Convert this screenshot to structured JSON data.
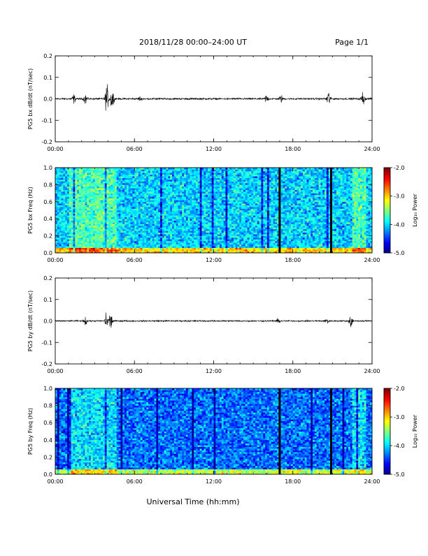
{
  "header": {
    "title": "2018/11/28  00:00–24:00 UT",
    "page": "Page 1/1"
  },
  "footer": {
    "xlabel": "Universal Time (hh:mm)"
  },
  "chart_data": [
    {
      "type": "line",
      "ylabel": "PG5 bx dB/dt (nT/sec)",
      "xlim": [
        "00:00",
        "24:00"
      ],
      "ylim": [
        -0.2,
        0.2
      ],
      "xticks": [
        "00:00",
        "06:00",
        "12:00",
        "18:00",
        "24:00"
      ],
      "yticks": [
        "-0.2",
        "-0.1",
        "0.0",
        "0.1",
        "0.2"
      ],
      "baseline_noise": 0.005,
      "bursts": [
        {
          "t": 1.4,
          "amp": 0.025
        },
        {
          "t": 2.3,
          "amp": 0.03
        },
        {
          "t": 3.9,
          "amp": 0.08
        },
        {
          "t": 4.3,
          "amp": 0.07
        },
        {
          "t": 6.4,
          "amp": 0.012
        },
        {
          "t": 16.0,
          "amp": 0.025
        },
        {
          "t": 17.1,
          "amp": 0.02
        },
        {
          "t": 20.7,
          "amp": 0.05
        },
        {
          "t": 23.3,
          "amp": 0.04
        }
      ],
      "color": "#000000"
    },
    {
      "type": "heatmap",
      "ylabel": "PG5 bx Freq (Hz)",
      "xlim": [
        "00:00",
        "24:00"
      ],
      "ylim": [
        0.0,
        1.0
      ],
      "xticks": [
        "00:00",
        "06:00",
        "12:00",
        "18:00",
        "24:00"
      ],
      "yticks": [
        "0.0",
        "0.2",
        "0.4",
        "0.6",
        "0.8",
        "1.0"
      ],
      "colorbar": {
        "label": "Log₁₀ Power",
        "range": [
          -5.0,
          -2.0
        ],
        "ticks": [
          "-2.0",
          "-3.0",
          "-4.0",
          "-5.0"
        ]
      },
      "data_gaps_hours": [
        17.0,
        20.9
      ],
      "enhanced_intervals_hours": [
        [
          1.0,
          4.6
        ],
        [
          22.5,
          23.6
        ]
      ],
      "cells": {
        "nx": 160,
        "ny": 50,
        "mean_log_power": -4.0
      }
    },
    {
      "type": "line",
      "ylabel": "PG5 by dB/dt (nT/sec)",
      "xlim": [
        "00:00",
        "24:00"
      ],
      "ylim": [
        -0.2,
        0.2
      ],
      "xticks": [
        "00:00",
        "06:00",
        "12:00",
        "18:00",
        "24:00"
      ],
      "yticks": [
        "-0.2",
        "-0.1",
        "0.0",
        "0.1",
        "0.2"
      ],
      "baseline_noise": 0.004,
      "bursts": [
        {
          "t": 2.3,
          "amp": 0.025
        },
        {
          "t": 3.9,
          "amp": 0.06
        },
        {
          "t": 4.2,
          "amp": 0.05
        },
        {
          "t": 16.9,
          "amp": 0.012
        },
        {
          "t": 20.6,
          "amp": 0.02
        },
        {
          "t": 22.4,
          "amp": 0.05
        }
      ],
      "color": "#000000"
    },
    {
      "type": "heatmap",
      "ylabel": "PG5 by Freq (Hz)",
      "xlim": [
        "00:00",
        "24:00"
      ],
      "ylim": [
        0.0,
        1.0
      ],
      "xticks": [
        "00:00",
        "06:00",
        "12:00",
        "18:00",
        "24:00"
      ],
      "yticks": [
        "0.0",
        "0.2",
        "0.4",
        "0.6",
        "0.8",
        "1.0"
      ],
      "colorbar": {
        "label": "Log₁₀ Power",
        "range": [
          -5.0,
          -2.0
        ],
        "ticks": [
          "-2.0",
          "-3.0",
          "-4.0",
          "-5.0"
        ]
      },
      "data_gaps_hours": [
        17.0,
        20.9
      ],
      "enhanced_intervals_hours": [
        [
          1.0,
          4.6
        ],
        [
          22.5,
          23.6
        ]
      ],
      "cells": {
        "nx": 160,
        "ny": 50,
        "mean_log_power": -4.3
      }
    }
  ]
}
